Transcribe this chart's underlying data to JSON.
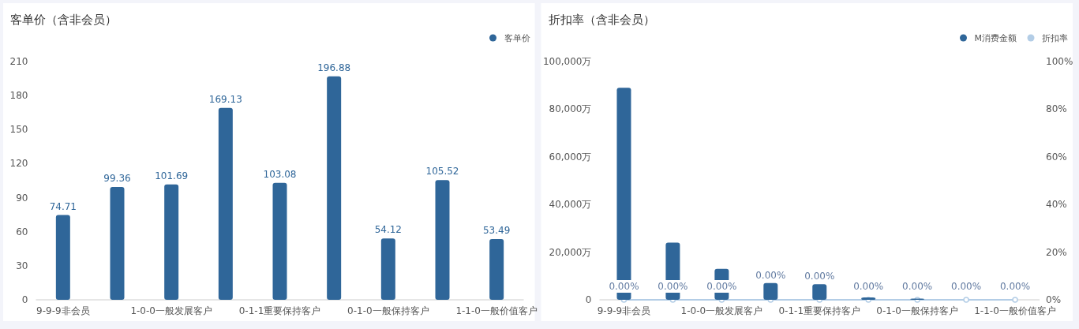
{
  "chart_data": [
    {
      "type": "bar",
      "title": "客单价（含非会员）",
      "categories": [
        "9-9-9非会员",
        null,
        "1-0-0一般发展客户",
        null,
        "0-1-1重要保持客户",
        null,
        "0-1-0一般保持客户",
        null,
        "1-1-0一般价值客户"
      ],
      "series": [
        {
          "name": "客单价",
          "color": "#2f6699",
          "values": [
            74.71,
            99.36,
            101.69,
            169.13,
            103.08,
            196.88,
            54.12,
            105.52,
            53.49
          ]
        }
      ],
      "ylim": [
        0,
        210
      ],
      "yticks": [
        0,
        30,
        60,
        90,
        120,
        150,
        180,
        210
      ],
      "data_labels": true,
      "legend": "top right"
    },
    {
      "type": "bar",
      "title": "折扣率（含非会员）",
      "categories": [
        "9-9-9非会员",
        null,
        "1-0-0一般发展客户",
        null,
        "0-1-1重要保持客户",
        null,
        "0-1-0一般保持客户",
        null,
        "1-1-0一般价值客户"
      ],
      "series": [
        {
          "name": "M消费金额",
          "color": "#2f6699",
          "values": [
            89000,
            24000,
            13000,
            7000,
            6500,
            1000,
            500,
            0,
            0
          ]
        },
        {
          "name": "折扣率",
          "type": "line",
          "axis": "y2",
          "color": "#b3cde6",
          "values": [
            0,
            0,
            0,
            0,
            0,
            0,
            0,
            0,
            0
          ],
          "value_labels": [
            "0.00%",
            "0.00%",
            "0.00%",
            "0.00%",
            "0.00%",
            "0.00%",
            "0.00%",
            "0.00%",
            "0.00%"
          ]
        }
      ],
      "ylim": [
        0,
        100000
      ],
      "yticks": [
        0,
        {
          "value": 20000,
          "label": "20,000万"
        },
        {
          "value": 40000,
          "label": "40,000万"
        },
        {
          "value": 60000,
          "label": "60,000万"
        },
        {
          "value": 80000,
          "label": "80,000万"
        },
        {
          "value": 100000,
          "label": "100,000万"
        }
      ],
      "y2lim": [
        0,
        100
      ],
      "y2ticks": [
        {
          "value": 0,
          "label": "0%"
        },
        {
          "value": 20,
          "label": "20%"
        },
        {
          "value": 40,
          "label": "40%"
        },
        {
          "value": 60,
          "label": "60%"
        },
        {
          "value": 80,
          "label": "80%"
        },
        {
          "value": 100,
          "label": "100%"
        }
      ],
      "marker": "circle",
      "legend": "top right"
    }
  ]
}
